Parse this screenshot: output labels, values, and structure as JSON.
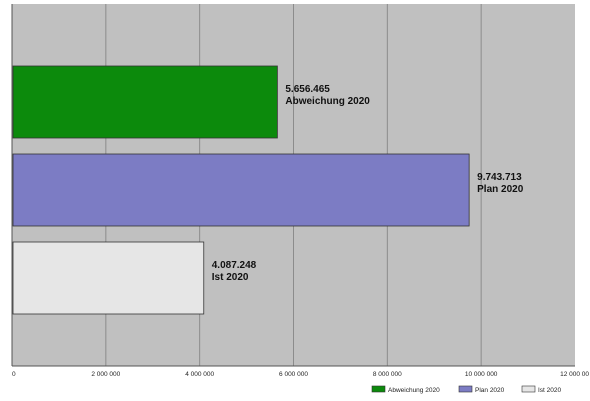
{
  "chart_data": {
    "type": "bar",
    "orientation": "horizontal",
    "title": "",
    "xlabel": "",
    "ylabel": "",
    "xlim": [
      0,
      12000000
    ],
    "grid": true,
    "legend_position": "bottom-right",
    "x_ticks": [
      "0",
      "2 000 000",
      "4 000 000",
      "6 000 000",
      "8 000 000",
      "10 000 000",
      "12 000 00"
    ],
    "series": [
      {
        "name": "Abweichung  2020",
        "value": 5656465,
        "value_label": "5.656.465",
        "bar_label": "Abweichung  2020",
        "color": "#0c8a0c"
      },
      {
        "name": "Plan 2020",
        "value": 9743713,
        "value_label": "9.743.713",
        "bar_label": "Plan 2020",
        "color": "#7c7cc4"
      },
      {
        "name": "Ist 2020",
        "value": 4087248,
        "value_label": "4.087.248",
        "bar_label": "Ist 2020",
        "color": "#e6e6e6"
      }
    ],
    "legend": [
      "Abweichung  2020",
      "Plan 2020",
      "Ist 2020"
    ],
    "colors": {
      "plot_background": "#c0c0c0",
      "gridline": "#8c8c8c"
    }
  }
}
